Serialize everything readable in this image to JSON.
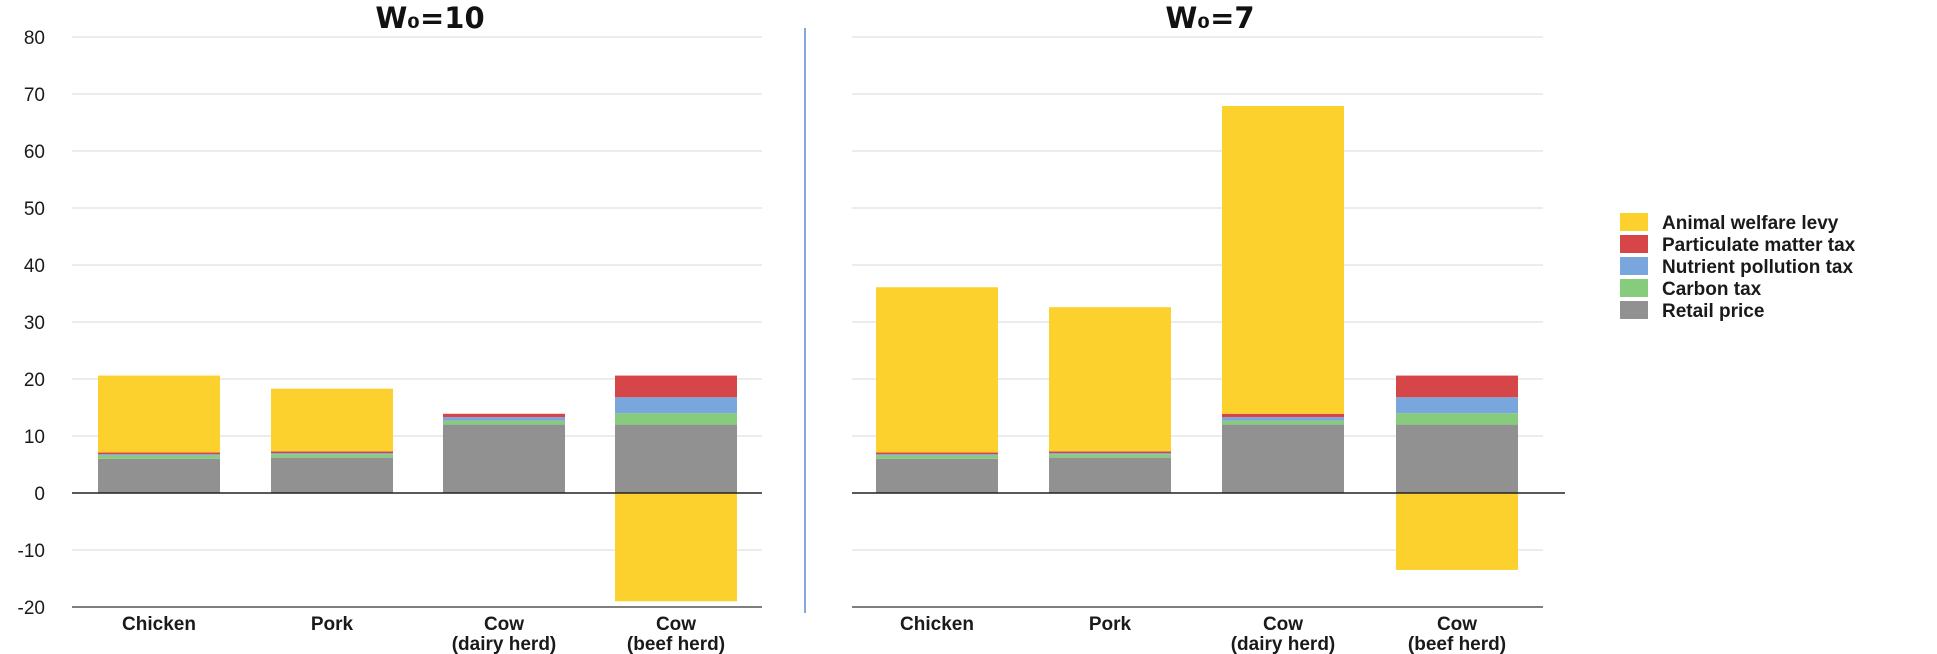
{
  "chart_data": {
    "type": "bar",
    "stacked": true,
    "ylim": [
      -20,
      80
    ],
    "yticks": [
      80,
      70,
      60,
      50,
      40,
      30,
      20,
      10,
      0,
      -10,
      -20
    ],
    "grid": true,
    "legend_placement": "right",
    "categories": [
      [
        "Chicken"
      ],
      [
        "Pork"
      ],
      [
        "Cow",
        "(dairy herd)"
      ],
      [
        "Cow",
        "(beef herd)"
      ]
    ],
    "series_order": [
      "Retail price",
      "Carbon tax",
      "Nutrient pollution tax",
      "Particulate matter tax",
      "Animal welfare levy"
    ],
    "legend_order": [
      "Animal welfare levy",
      "Particulate matter tax",
      "Nutrient pollution tax",
      "Carbon tax",
      "Retail price"
    ],
    "colors": {
      "Animal welfare levy": "#FDD12D",
      "Particulate matter tax": "#D64547",
      "Nutrient pollution tax": "#79A6DD",
      "Carbon tax": "#87CB7C",
      "Retail price": "#919191"
    },
    "panels": [
      {
        "title": "W₀=10",
        "series": [
          {
            "name": "Retail price",
            "values": [
              6,
              6.2,
              12,
              12
            ]
          },
          {
            "name": "Carbon tax",
            "values": [
              0.6,
              0.6,
              0.7,
              2
            ]
          },
          {
            "name": "Nutrient pollution tax",
            "values": [
              0.2,
              0.2,
              0.6,
              2.8
            ]
          },
          {
            "name": "Particulate matter tax",
            "values": [
              0.3,
              0.3,
              0.6,
              3.8
            ]
          },
          {
            "name": "Animal welfare levy",
            "values": [
              13.5,
              11,
              0,
              -19
            ]
          }
        ]
      },
      {
        "title": "W₀=7",
        "series": [
          {
            "name": "Retail price",
            "values": [
              6,
              6.2,
              12,
              12
            ]
          },
          {
            "name": "Carbon tax",
            "values": [
              0.6,
              0.6,
              0.7,
              2
            ]
          },
          {
            "name": "Nutrient pollution tax",
            "values": [
              0.2,
              0.2,
              0.6,
              2.8
            ]
          },
          {
            "name": "Particulate matter tax",
            "values": [
              0.3,
              0.3,
              0.6,
              3.8
            ]
          },
          {
            "name": "Animal welfare levy",
            "values": [
              29,
              25.3,
              54,
              -13.5
            ]
          }
        ]
      }
    ]
  }
}
